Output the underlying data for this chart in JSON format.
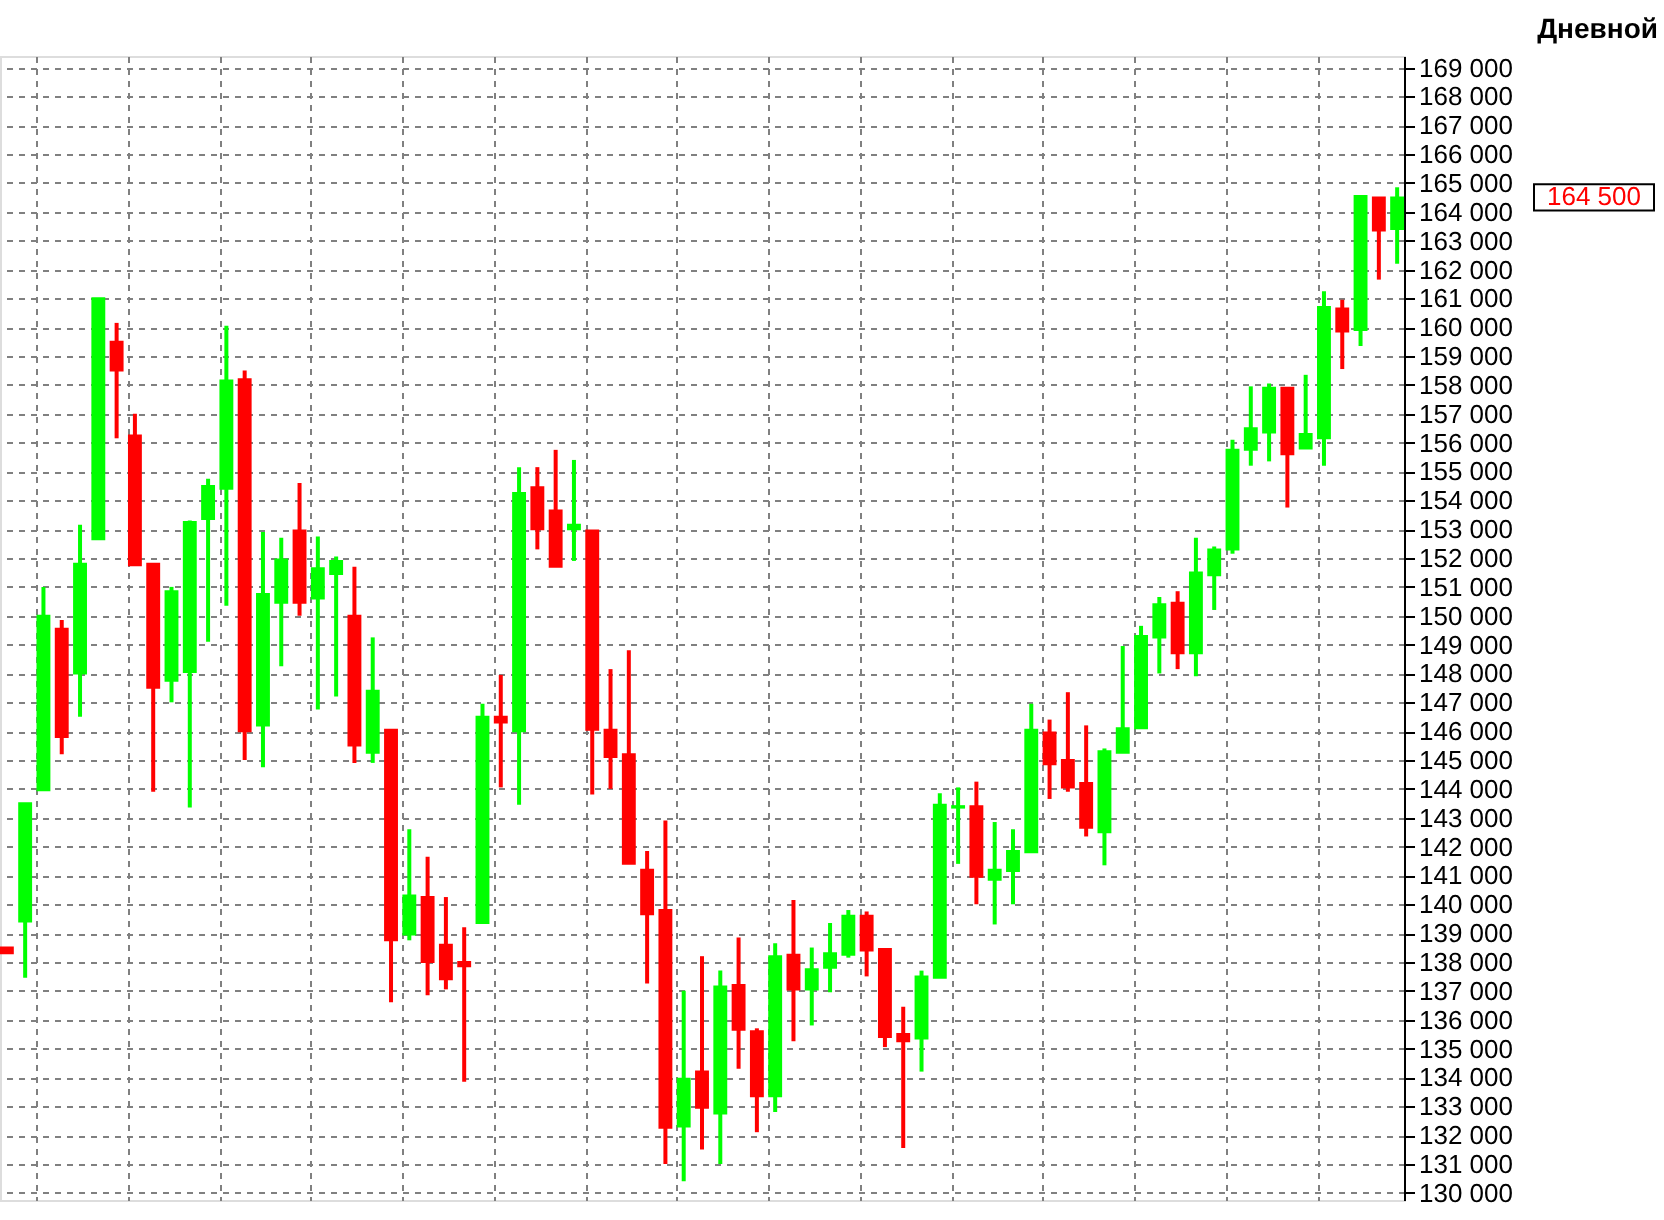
{
  "chart_data": {
    "type": "candlestick",
    "title": "Дневной",
    "categories": [
      null,
      null,
      null,
      null,
      null,
      null,
      null,
      null,
      null,
      null,
      null,
      null,
      null,
      null,
      null,
      null,
      null,
      null,
      null,
      null,
      null,
      null,
      null,
      null,
      null,
      null,
      null,
      null,
      null,
      null,
      null,
      null,
      null,
      null,
      null,
      null,
      null,
      null,
      null,
      null,
      null,
      null,
      null,
      null,
      null,
      null,
      null,
      null,
      null,
      null,
      null,
      null,
      null,
      null,
      null,
      null,
      null,
      null,
      null,
      null,
      null,
      null,
      null,
      null,
      null,
      null,
      null,
      null,
      null,
      null,
      null,
      null,
      null,
      null,
      null,
      null,
      null
    ],
    "ohlc": [
      [
        138500,
        138500,
        138300,
        138300
      ],
      [
        139400,
        143500,
        137450,
        143500
      ],
      [
        143950,
        151000,
        143950,
        150000
      ],
      [
        149550,
        149850,
        145200,
        145800
      ],
      [
        148000,
        153150,
        146500,
        151800
      ],
      [
        152650,
        161000,
        152650,
        161000
      ],
      [
        159500,
        160150,
        156150,
        158500
      ],
      [
        156250,
        157000,
        151750,
        151750
      ],
      [
        151800,
        151800,
        143900,
        147500
      ],
      [
        147750,
        151000,
        147000,
        150850
      ],
      [
        148050,
        153300,
        143350,
        153250
      ],
      [
        153350,
        154750,
        149100,
        154500
      ],
      [
        154400,
        160050,
        150350,
        158150
      ],
      [
        158200,
        158500,
        145000,
        146000
      ],
      [
        146200,
        152900,
        144750,
        150750
      ],
      [
        150450,
        152700,
        148250,
        151950
      ],
      [
        152950,
        154600,
        150000,
        150450
      ],
      [
        150600,
        152750,
        146750,
        151650
      ],
      [
        151450,
        152050,
        147200,
        151900
      ],
      [
        150000,
        151700,
        144900,
        145500
      ],
      [
        145250,
        149250,
        144900,
        147400
      ],
      [
        146050,
        146050,
        136600,
        138750
      ],
      [
        138950,
        142600,
        138750,
        140300
      ],
      [
        140250,
        141650,
        136850,
        138000
      ],
      [
        138600,
        140250,
        137050,
        137400
      ],
      [
        138000,
        139200,
        133850,
        137850
      ],
      [
        139350,
        146950,
        139350,
        146500
      ],
      [
        146500,
        147950,
        144050,
        146300
      ],
      [
        146000,
        155150,
        143450,
        154250
      ],
      [
        154450,
        155150,
        152300,
        153000
      ],
      [
        153650,
        155750,
        151700,
        151700
      ],
      [
        153000,
        155400,
        151900,
        153150
      ],
      [
        152950,
        152950,
        143800,
        146050
      ],
      [
        146050,
        148150,
        144000,
        145100
      ],
      [
        145200,
        148800,
        141400,
        141400
      ],
      [
        141200,
        141850,
        137250,
        139650
      ],
      [
        139800,
        142900,
        131000,
        132250
      ],
      [
        132300,
        137000,
        130400,
        133950
      ],
      [
        134200,
        138200,
        131500,
        132950
      ],
      [
        132750,
        137700,
        131000,
        137150
      ],
      [
        137200,
        138850,
        134300,
        135650
      ],
      [
        135600,
        135700,
        132100,
        133350
      ],
      [
        133350,
        138650,
        132800,
        138200
      ],
      [
        138250,
        140150,
        135250,
        137050
      ],
      [
        137050,
        138500,
        135800,
        137750
      ],
      [
        137800,
        139350,
        136950,
        138300
      ],
      [
        138250,
        139800,
        138150,
        139600
      ],
      [
        139600,
        139750,
        137500,
        138400
      ],
      [
        138450,
        138450,
        135050,
        135400
      ],
      [
        135500,
        136450,
        131550,
        135250
      ],
      [
        135350,
        137700,
        134200,
        137500
      ],
      [
        137450,
        143850,
        137450,
        143450
      ],
      [
        143350,
        144050,
        141400,
        143400
      ],
      [
        143400,
        144250,
        140000,
        140950
      ],
      [
        140850,
        142850,
        139300,
        141200
      ],
      [
        141150,
        142600,
        140000,
        141850
      ],
      [
        141800,
        146950,
        141800,
        146050
      ],
      [
        145950,
        146400,
        143650,
        144850
      ],
      [
        145000,
        147350,
        143900,
        144050
      ],
      [
        144200,
        146200,
        142350,
        142650
      ],
      [
        142500,
        145400,
        141350,
        145300
      ],
      [
        145250,
        148950,
        145250,
        146100
      ],
      [
        146100,
        149650,
        146100,
        149300
      ],
      [
        149250,
        150650,
        148000,
        150400
      ],
      [
        150450,
        150850,
        148150,
        148700
      ],
      [
        148700,
        152700,
        147900,
        151500
      ],
      [
        151400,
        152400,
        150200,
        152300
      ],
      [
        152300,
        156100,
        152150,
        155750
      ],
      [
        155750,
        157950,
        155200,
        156500
      ],
      [
        156350,
        158050,
        155350,
        157900
      ],
      [
        157900,
        157900,
        153750,
        155600
      ],
      [
        155800,
        158350,
        155800,
        156300
      ],
      [
        156150,
        161250,
        155200,
        160700
      ],
      [
        160650,
        160950,
        158550,
        159850
      ],
      [
        159900,
        164550,
        159350,
        164550
      ],
      [
        164500,
        164500,
        161650,
        163350
      ],
      [
        163400,
        164850,
        162200,
        164500
      ]
    ],
    "colors": [
      "#ff0000",
      "#00ff00",
      "#00ff00",
      "#ff0000",
      "#00ff00",
      "#00ff00",
      "#ff0000",
      "#ff0000",
      "#ff0000",
      "#00ff00",
      "#00ff00",
      "#00ff00",
      "#00ff00",
      "#ff0000",
      "#00ff00",
      "#00ff00",
      "#ff0000",
      "#00ff00",
      "#00ff00",
      "#ff0000",
      "#00ff00",
      "#ff0000",
      "#00ff00",
      "#ff0000",
      "#ff0000",
      "#ff0000",
      "#00ff00",
      "#ff0000",
      "#00ff00",
      "#ff0000",
      "#ff0000",
      "#00ff00",
      "#ff0000",
      "#ff0000",
      "#ff0000",
      "#ff0000",
      "#ff0000",
      "#00ff00",
      "#ff0000",
      "#00ff00",
      "#ff0000",
      "#ff0000",
      "#00ff00",
      "#ff0000",
      "#00ff00",
      "#00ff00",
      "#00ff00",
      "#ff0000",
      "#ff0000",
      "#ff0000",
      "#00ff00",
      "#00ff00",
      "#00ff00",
      "#ff0000",
      "#00ff00",
      "#00ff00",
      "#00ff00",
      "#ff0000",
      "#ff0000",
      "#ff0000",
      "#00ff00",
      "#00ff00",
      "#00ff00",
      "#00ff00",
      "#ff0000",
      "#00ff00",
      "#00ff00",
      "#00ff00",
      "#00ff00",
      "#00ff00",
      "#ff0000",
      "#00ff00",
      "#00ff00",
      "#ff0000",
      "#00ff00",
      "#ff0000",
      "#00ff00"
    ],
    "ylim": [
      129750,
      169400
    ],
    "yticks": [
      {
        "value": 130000,
        "label": "130 000"
      },
      {
        "value": 131000,
        "label": "131 000"
      },
      {
        "value": 132000,
        "label": "132 000"
      },
      {
        "value": 133000,
        "label": "133 000"
      },
      {
        "value": 134000,
        "label": "134 000"
      },
      {
        "value": 135000,
        "label": "135 000"
      },
      {
        "value": 136000,
        "label": "136 000"
      },
      {
        "value": 137000,
        "label": "137 000"
      },
      {
        "value": 138000,
        "label": "138 000"
      },
      {
        "value": 139000,
        "label": "139 000"
      },
      {
        "value": 140000,
        "label": "140 000"
      },
      {
        "value": 141000,
        "label": "141 000"
      },
      {
        "value": 142000,
        "label": "142 000"
      },
      {
        "value": 143000,
        "label": "143 000"
      },
      {
        "value": 144000,
        "label": "144 000"
      },
      {
        "value": 145000,
        "label": "145 000"
      },
      {
        "value": 146000,
        "label": "146 000"
      },
      {
        "value": 147000,
        "label": "147 000"
      },
      {
        "value": 148000,
        "label": "148 000"
      },
      {
        "value": 149000,
        "label": "149 000"
      },
      {
        "value": 150000,
        "label": "150 000"
      },
      {
        "value": 151000,
        "label": "151 000"
      },
      {
        "value": 152000,
        "label": "152 000"
      },
      {
        "value": 153000,
        "label": "153 000"
      },
      {
        "value": 154000,
        "label": "154 000"
      },
      {
        "value": 155000,
        "label": "155 000"
      },
      {
        "value": 156000,
        "label": "156 000"
      },
      {
        "value": 157000,
        "label": "157 000"
      },
      {
        "value": 158000,
        "label": "158 000"
      },
      {
        "value": 159000,
        "label": "159 000"
      },
      {
        "value": 160000,
        "label": "160 000"
      },
      {
        "value": 161000,
        "label": "161 000"
      },
      {
        "value": 162000,
        "label": "162 000"
      },
      {
        "value": 163000,
        "label": "163 000"
      },
      {
        "value": 164000,
        "label": "164 000"
      },
      {
        "value": 165000,
        "label": "165 000"
      },
      {
        "value": 166000,
        "label": "166 000"
      },
      {
        "value": 167000,
        "label": "167 000"
      },
      {
        "value": 168000,
        "label": "168 000"
      },
      {
        "value": 169000,
        "label": "169 000"
      }
    ],
    "annotations": [
      "164 500"
    ],
    "grid": true,
    "tick_labels": "y"
  }
}
